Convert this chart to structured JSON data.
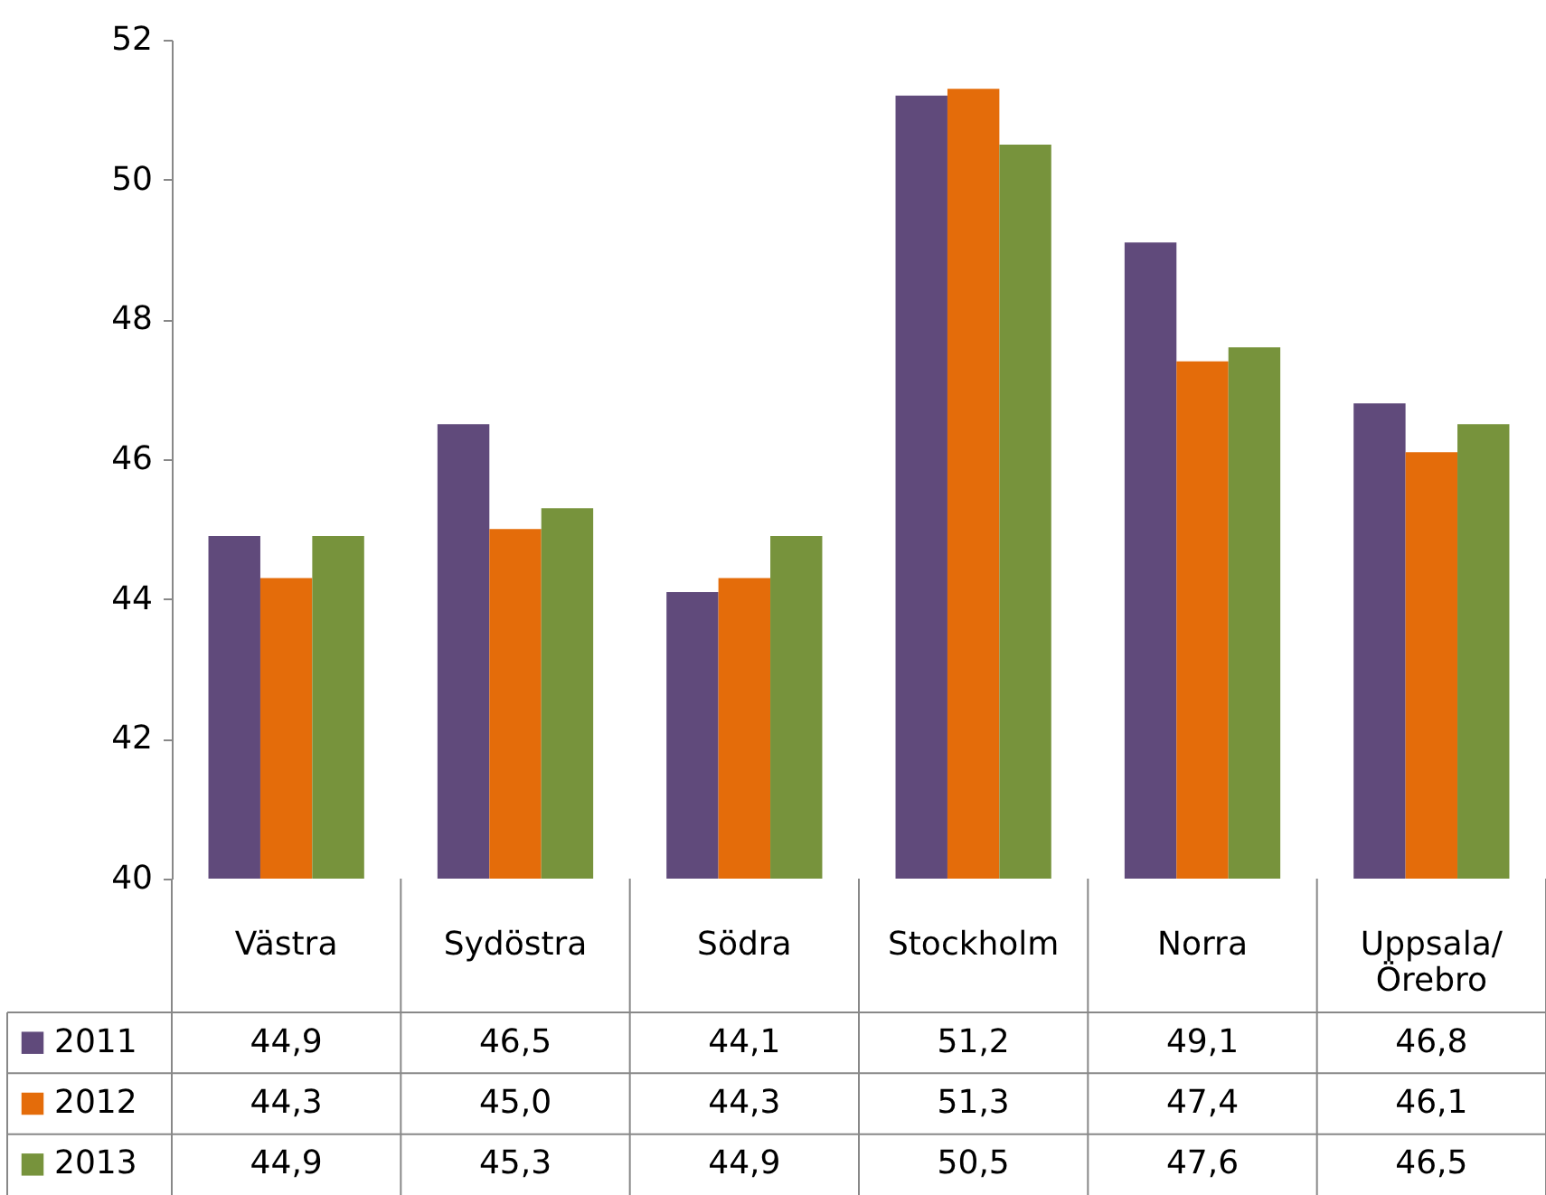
{
  "chart_data": {
    "type": "bar",
    "categories": [
      "Västra",
      "Sydöstra",
      "Södra",
      "Stockholm",
      "Norra",
      "Uppsala/Örebro"
    ],
    "series": [
      {
        "name": "2011",
        "color": "#604a7b",
        "values": [
          44.9,
          46.5,
          44.1,
          51.2,
          49.1,
          46.8
        ],
        "value_labels": [
          "44,9",
          "46,5",
          "44,1",
          "51,2",
          "49,1",
          "46,8"
        ]
      },
      {
        "name": "2012",
        "color": "#e46c0a",
        "values": [
          44.3,
          45.0,
          44.3,
          51.3,
          47.4,
          46.1
        ],
        "value_labels": [
          "44,3",
          "45,0",
          "44,3",
          "51,3",
          "47,4",
          "46,1"
        ]
      },
      {
        "name": "2013",
        "color": "#77933c",
        "values": [
          44.9,
          45.3,
          44.9,
          50.5,
          47.6,
          46.5
        ],
        "value_labels": [
          "44,9",
          "45,3",
          "44,9",
          "50,5",
          "47,6",
          "46,5"
        ]
      }
    ],
    "ylim": [
      40,
      52
    ],
    "yticks": [
      40,
      42,
      44,
      46,
      48,
      50,
      52
    ],
    "grid": false,
    "legend": "bottom"
  }
}
